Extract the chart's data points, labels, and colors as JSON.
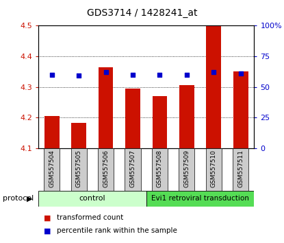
{
  "title": "GDS3714 / 1428241_at",
  "samples": [
    "GSM557504",
    "GSM557505",
    "GSM557506",
    "GSM557507",
    "GSM557508",
    "GSM557509",
    "GSM557510",
    "GSM557511"
  ],
  "transformed_count": [
    4.205,
    4.183,
    4.365,
    4.295,
    4.27,
    4.305,
    4.5,
    4.35
  ],
  "percentile_rank": [
    60,
    59,
    62,
    60,
    60,
    60,
    62,
    61
  ],
  "ylim_left": [
    4.1,
    4.5
  ],
  "ylim_right": [
    0,
    100
  ],
  "yticks_left": [
    4.1,
    4.2,
    4.3,
    4.4,
    4.5
  ],
  "yticks_right": [
    0,
    25,
    50,
    75,
    100
  ],
  "bar_color": "#cc1100",
  "marker_color": "#0000cc",
  "bar_bottom": 4.1,
  "bar_width": 0.55,
  "bg_color": "#ffffff",
  "tick_label_color_left": "#cc1100",
  "tick_label_color_right": "#0000cc",
  "legend_items": [
    {
      "label": "transformed count",
      "color": "#cc1100"
    },
    {
      "label": "percentile rank within the sample",
      "color": "#0000cc"
    }
  ],
  "ctrl_color": "#ccffcc",
  "evi_color": "#55dd55",
  "sample_box_color": "#cccccc",
  "ctrl_label": "control",
  "evi_label": "Evi1 retroviral transduction",
  "protocol_label": "protocol"
}
